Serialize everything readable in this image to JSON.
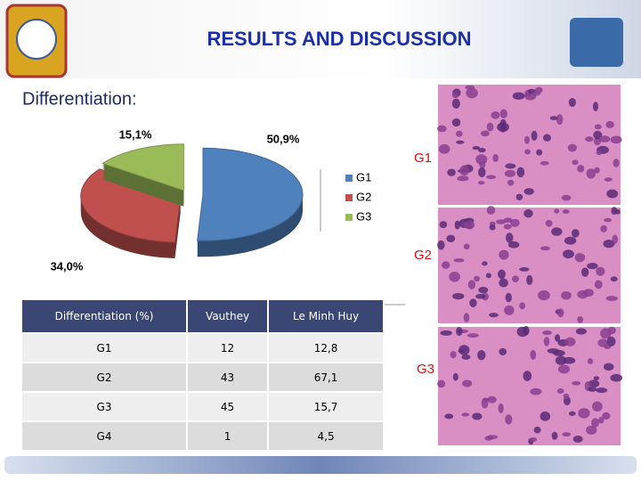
{
  "header": {
    "title": "RESULTS AND DISCUSSION",
    "subtitle": "Differentiation:"
  },
  "chart_data": {
    "type": "pie",
    "categories": [
      "G1",
      "G2",
      "G3"
    ],
    "values": [
      50.9,
      34.0,
      15.1
    ],
    "value_labels": [
      "50,9%",
      "34,0%",
      "15,1%"
    ],
    "colors": [
      "#4f81bd",
      "#c0504d",
      "#9bbb59"
    ],
    "legend": "right"
  },
  "table": {
    "header": [
      "Differentiation (%)",
      "Vauthey",
      "Le Minh Huy"
    ],
    "rows": [
      [
        "G1",
        "12",
        "12,8"
      ],
      [
        "G2",
        "43",
        "67,1"
      ],
      [
        "G3",
        "45",
        "15,7"
      ],
      [
        "G4",
        "1",
        "4,5"
      ]
    ]
  },
  "images": {
    "labels": [
      "G1",
      "G2",
      "G3"
    ]
  }
}
